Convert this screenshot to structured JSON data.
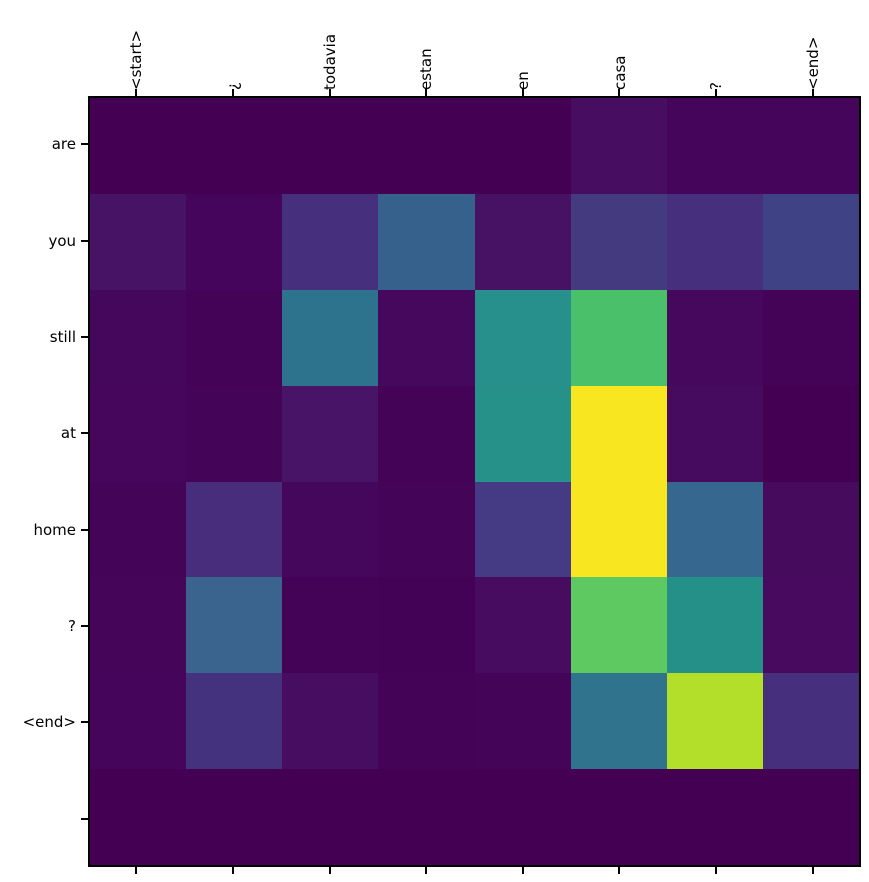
{
  "figure": {
    "background": "#ffffff",
    "axis_color": "#000000"
  },
  "chart_data": {
    "type": "heatmap",
    "title": "",
    "xlabel": "",
    "ylabel": "",
    "x_axis_position": "top",
    "y_axis_position": "left",
    "x_tick_label_rotation_deg": 90,
    "grid": false,
    "legend": "none",
    "colormap": "viridis",
    "value_range": [
      0,
      1
    ],
    "x_labels": [
      "<start>",
      "¿",
      "todavia",
      "estan",
      "en",
      "casa",
      "?",
      "<end>"
    ],
    "y_labels": [
      "are",
      "you",
      "still",
      "at",
      "home",
      "?",
      "<end>",
      ""
    ],
    "values": [
      [
        0.0,
        0.0,
        0.0,
        0.0,
        0.0,
        0.05,
        0.02,
        0.02
      ],
      [
        0.08,
        0.02,
        0.14,
        0.28,
        0.08,
        0.17,
        0.14,
        0.2
      ],
      [
        0.03,
        0.01,
        0.37,
        0.03,
        0.47,
        0.72,
        0.03,
        0.01
      ],
      [
        0.03,
        0.02,
        0.09,
        0.01,
        0.47,
        0.97,
        0.04,
        0.0
      ],
      [
        0.02,
        0.13,
        0.03,
        0.02,
        0.17,
        0.97,
        0.29,
        0.05
      ],
      [
        0.02,
        0.28,
        0.01,
        0.01,
        0.05,
        0.75,
        0.48,
        0.05
      ],
      [
        0.02,
        0.15,
        0.05,
        0.01,
        0.02,
        0.37,
        0.85,
        0.15
      ],
      [
        0.0,
        0.0,
        0.0,
        0.0,
        0.0,
        0.0,
        0.0,
        0.0
      ]
    ],
    "cell_colors": [
      [
        "#440154",
        "#440154",
        "#440154",
        "#440154",
        "#440154",
        "#470d60",
        "#45055a",
        "#45055a"
      ],
      [
        "#471365",
        "#45055c",
        "#46307e",
        "#36618d",
        "#471264",
        "#433a80",
        "#462f7d",
        "#3f4386"
      ],
      [
        "#45075c",
        "#440356",
        "#2e738e",
        "#46085c",
        "#27908c",
        "#4bc06b",
        "#45085c",
        "#440356"
      ],
      [
        "#45065b",
        "#440458",
        "#471467",
        "#440356",
        "#269189",
        "#f8e621",
        "#460a5e",
        "#440154"
      ],
      [
        "#440458",
        "#472d7b",
        "#45075c",
        "#440457",
        "#443b84",
        "#f8e621",
        "#36678e",
        "#470b5e"
      ],
      [
        "#450559",
        "#3a648d",
        "#440357",
        "#440256",
        "#470c5f",
        "#5fc961",
        "#259088",
        "#470a5e"
      ],
      [
        "#45055a",
        "#45327e",
        "#470d60",
        "#440357",
        "#440458",
        "#2f748c",
        "#b3de29",
        "#46307e"
      ],
      [
        "#440154",
        "#440154",
        "#440154",
        "#440154",
        "#440154",
        "#440154",
        "#440154",
        "#440154"
      ]
    ]
  }
}
